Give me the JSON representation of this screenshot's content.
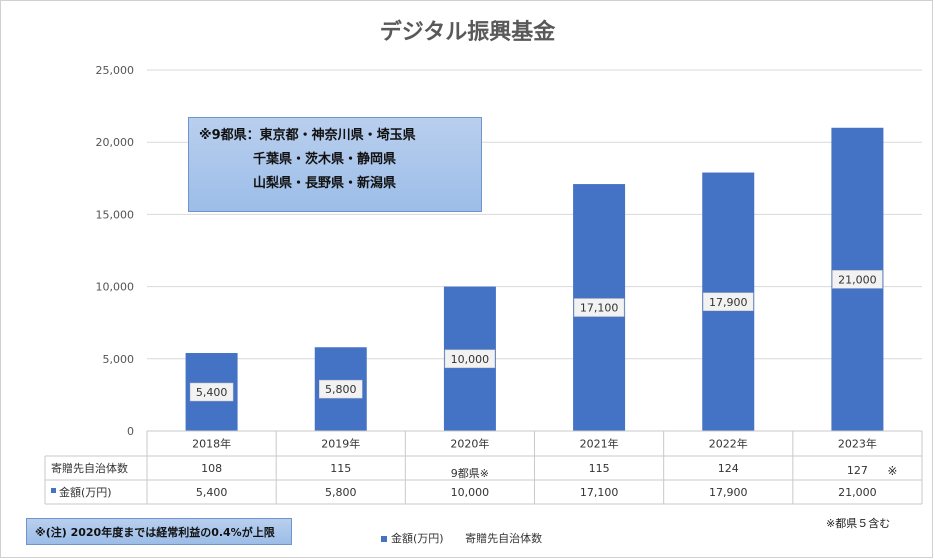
{
  "chart_data": {
    "type": "bar",
    "title": "デジタル振興基金",
    "categories": [
      "2018年",
      "2019年",
      "2020年",
      "2021年",
      "2022年",
      "2023年"
    ],
    "series": [
      {
        "name": "金額(万円)",
        "values": [
          5400,
          5800,
          10000,
          17100,
          17900,
          21000
        ],
        "data_labels": [
          "5,400",
          "5,800",
          "10,000",
          "17,100",
          "17,900",
          "21,000"
        ],
        "color": "#4472c4"
      }
    ],
    "y_ticks": [
      "0",
      "5,000",
      "10,000",
      "15,000",
      "20,000",
      "25,000"
    ],
    "ylim": [
      0,
      25000
    ],
    "grid": true,
    "data_table": {
      "rows": [
        {
          "label": "寄贈先自治体数",
          "values": [
            "108",
            "115",
            "9都県※",
            "115",
            "124",
            "127"
          ]
        },
        {
          "label": "金額(万円)",
          "values": [
            "5,400",
            "5,800",
            "10,000",
            "17,100",
            "17,900",
            "21,000"
          ]
        }
      ]
    },
    "legend": {
      "position": "bottom",
      "items": [
        "金額(万円)",
        "寄贈先自治体数"
      ]
    }
  },
  "annotations": {
    "region_box": [
      "※9都県：東京都・神奈川県・埼玉県",
      "千葉県・茨木県・静岡県",
      "山梨県・長野県・新潟県"
    ],
    "footnote": "※(注) 2020年度までは経常利益の0.4%が上限",
    "side_note": "※都県５含む",
    "asterisk_2023": "※"
  },
  "colors": {
    "bar": "#4472c4",
    "grid": "#d9d9d9",
    "label_bg": "#f2f2f2"
  }
}
